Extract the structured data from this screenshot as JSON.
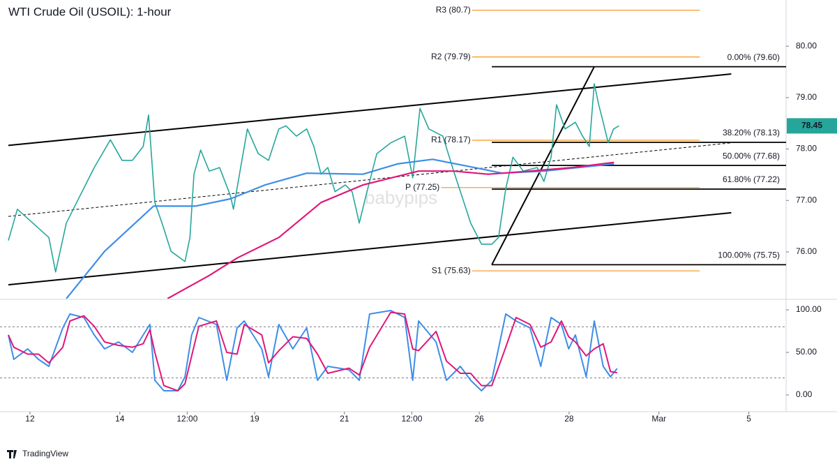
{
  "chart_data": [
    {
      "type": "line",
      "title": "WTI Crude Oil (USOIL): 1-hour",
      "watermark": "babypips",
      "xlim": [
        -0.667,
        16.83
      ],
      "xticks": [
        {
          "value": 0,
          "label": "12"
        },
        {
          "value": 2,
          "label": "14"
        },
        {
          "value": 3.5,
          "label": "12:00"
        },
        {
          "value": 5,
          "label": "19"
        },
        {
          "value": 7,
          "label": "21"
        },
        {
          "value": 8.5,
          "label": "12:00"
        },
        {
          "value": 10,
          "label": "26"
        },
        {
          "value": 12,
          "label": "28"
        },
        {
          "value": 14,
          "label": "Mar"
        },
        {
          "value": 16,
          "label": "5"
        }
      ],
      "ylim": [
        75.09,
        80.83
      ],
      "yticks": [
        {
          "value": 80,
          "label": "80.00"
        },
        {
          "value": 79,
          "label": "79.00"
        },
        {
          "value": 78,
          "label": "78.00"
        },
        {
          "value": 77,
          "label": "77.00"
        },
        {
          "value": 76,
          "label": "76.00"
        }
      ],
      "price_tag": 78.45,
      "series": [
        {
          "color": "#26a69a",
          "x": [
            -0.48,
            -0.28,
            0.42,
            0.57,
            0.81,
            1.04,
            1.43,
            1.79,
            2.05,
            2.28,
            2.52,
            2.64,
            2.78,
            2.94,
            3.14,
            3.45,
            3.56,
            3.65,
            3.8,
            3.99,
            4.22,
            4.46,
            4.53,
            4.69,
            4.84,
            5.08,
            5.31,
            5.54,
            5.7,
            5.93,
            6.16,
            6.32,
            6.48,
            6.63,
            6.79,
            7.02,
            7.17,
            7.33,
            7.48,
            7.72,
            8.03,
            8.34,
            8.52,
            8.68,
            8.88,
            9.19,
            9.43,
            9.66,
            9.81,
            10.05,
            10.28,
            10.43,
            10.59,
            10.75,
            10.98,
            11.29,
            11.44,
            11.6,
            11.72,
            11.91,
            12.14,
            12.3,
            12.45,
            12.56,
            12.66,
            12.76,
            12.87,
            12.99,
            13.11
          ],
          "values": [
            76.22,
            76.83,
            76.28,
            75.61,
            76.56,
            76.96,
            77.64,
            78.18,
            77.78,
            77.78,
            78.05,
            78.66,
            76.96,
            76.56,
            76.01,
            75.81,
            76.28,
            77.51,
            77.98,
            77.57,
            77.64,
            77.1,
            76.83,
            77.64,
            78.39,
            77.91,
            77.78,
            78.39,
            78.45,
            78.25,
            78.39,
            78.05,
            77.51,
            77.64,
            77.17,
            77.3,
            77.17,
            76.56,
            77.1,
            77.91,
            78.12,
            78.25,
            77.44,
            78.79,
            78.39,
            78.25,
            77.57,
            76.96,
            76.56,
            76.15,
            76.15,
            76.28,
            77.23,
            77.84,
            77.57,
            77.64,
            77.37,
            77.84,
            78.86,
            78.39,
            78.52,
            78.25,
            78.05,
            79.27,
            78.86,
            78.52,
            78.12,
            78.39,
            78.45
          ]
        },
        {
          "color": "#3d8ee8",
          "x": [
            0.81,
            1.66,
            2.75,
            3.68,
            4.46,
            5.23,
            6.16,
            7.41,
            8.18,
            8.96,
            9.89,
            10.51,
            11.44,
            13.0
          ],
          "values": [
            75.09,
            76.01,
            76.89,
            76.89,
            77.03,
            77.3,
            77.53,
            77.51,
            77.71,
            77.8,
            77.64,
            77.53,
            77.57,
            77.71
          ]
        },
        {
          "color": "#e0177a",
          "x": [
            3.06,
            3.99,
            4.61,
            5.54,
            6.48,
            7.41,
            8.65,
            9.43,
            10.2,
            11.13,
            12.07,
            13.0
          ],
          "values": [
            75.09,
            75.54,
            75.88,
            76.28,
            76.96,
            77.3,
            77.57,
            77.57,
            77.51,
            77.57,
            77.64,
            77.74
          ]
        }
      ],
      "lines": [
        {
          "x": [
            -0.48,
            15.61
          ],
          "values": [
            78.07,
            79.46
          ],
          "color": "#000000",
          "dashed": false
        },
        {
          "x": [
            -0.48,
            15.61
          ],
          "values": [
            75.36,
            76.76
          ],
          "color": "#000000",
          "dashed": false
        },
        {
          "x": [
            -0.48,
            15.61
          ],
          "values": [
            76.69,
            78.12
          ],
          "color": "#000000",
          "dashed": true
        },
        {
          "x": [
            10.28,
            12.56
          ],
          "values": [
            75.75,
            79.6
          ],
          "color": "#000000",
          "dashed": false
        }
      ],
      "pivot_color": "#f7931a",
      "pivots": [
        {
          "label": "R3 (80.7)",
          "value": 80.7,
          "x": [
            9.84,
            14.91
          ]
        },
        {
          "label": "R2 (79.79)",
          "value": 79.79,
          "x": [
            9.84,
            14.91
          ]
        },
        {
          "label": "R1 (78.17)",
          "value": 78.17,
          "x": [
            9.84,
            14.91
          ]
        },
        {
          "label": "P (77.25)",
          "value": 77.25,
          "x": [
            9.15,
            14.91
          ]
        },
        {
          "label": "S1 (75.63)",
          "value": 75.63,
          "x": [
            9.84,
            14.91
          ]
        }
      ],
      "fib_start": 10.28,
      "fib_levels": [
        {
          "label": "0.00% (79.60)",
          "value": 79.6
        },
        {
          "label": "38.20% (78.13)",
          "value": 78.13
        },
        {
          "label": "50.00% (77.68)",
          "value": 77.68
        },
        {
          "label": "61.80% (77.22)",
          "value": 77.22
        },
        {
          "label": "100.00% (75.75)",
          "value": 75.75
        }
      ]
    },
    {
      "type": "line",
      "ylim": [
        -9,
        111.5
      ],
      "yticks": [
        {
          "value": 100,
          "label": "100.00"
        },
        {
          "value": 50,
          "label": "50.00"
        },
        {
          "value": 0,
          "label": "0.00"
        }
      ],
      "levels": [
        80,
        20
      ],
      "x": [
        -0.48,
        -0.36,
        -0.05,
        0.19,
        0.42,
        0.73,
        0.89,
        1.2,
        1.43,
        1.66,
        1.97,
        2.28,
        2.52,
        2.67,
        2.78,
        2.98,
        3.29,
        3.45,
        3.6,
        3.76,
        4.15,
        4.38,
        4.61,
        4.77,
        5.16,
        5.31,
        5.54,
        5.85,
        6.16,
        6.4,
        6.63,
        7.1,
        7.33,
        7.56,
        8.03,
        8.34,
        8.52,
        8.65,
        9.04,
        9.27,
        9.58,
        9.81,
        10.05,
        10.28,
        10.59,
        10.82,
        11.13,
        11.37,
        11.6,
        11.83,
        11.99,
        12.14,
        12.38,
        12.56,
        12.76,
        12.92,
        13.07
      ],
      "series": [
        {
          "color": "#3d8ee8",
          "values": [
            70.5,
            41.8,
            54.1,
            41.8,
            33.6,
            78.7,
            95.1,
            91.0,
            70.5,
            54.1,
            62.3,
            50.0,
            70.5,
            82.8,
            17.2,
            4.9,
            4.9,
            21.3,
            70.5,
            91.0,
            82.8,
            17.2,
            78.7,
            86.9,
            54.1,
            21.3,
            82.8,
            54.1,
            78.7,
            17.2,
            33.6,
            29.5,
            17.2,
            95.1,
            99.2,
            91.0,
            17.2,
            86.9,
            62.3,
            17.2,
            33.6,
            17.2,
            4.9,
            17.2,
            95.1,
            86.9,
            78.7,
            33.6,
            91.0,
            82.8,
            54.1,
            70.5,
            21.3,
            86.9,
            33.6,
            21.3,
            31.1
          ]
        },
        {
          "color": "#e0177a",
          "values": [
            70.5,
            56,
            48,
            48,
            37.7,
            56,
            86.9,
            93,
            80.7,
            62.3,
            58.2,
            56.1,
            60.2,
            76.6,
            50,
            11,
            4.9,
            13.1,
            45.9,
            80.7,
            86.9,
            50,
            48,
            82.8,
            70.5,
            37.7,
            52,
            68.4,
            66.4,
            48,
            25.4,
            31.5,
            23.4,
            56.1,
            97.1,
            95.1,
            54.1,
            52,
            74.6,
            39.8,
            25.4,
            25.4,
            11,
            11,
            56.1,
            91,
            82.8,
            56.1,
            62.3,
            86.9,
            68.4,
            62.3,
            45.9,
            54.1,
            60.2,
            27.5,
            26.2
          ]
        }
      ]
    }
  ],
  "brand": "TradingView"
}
